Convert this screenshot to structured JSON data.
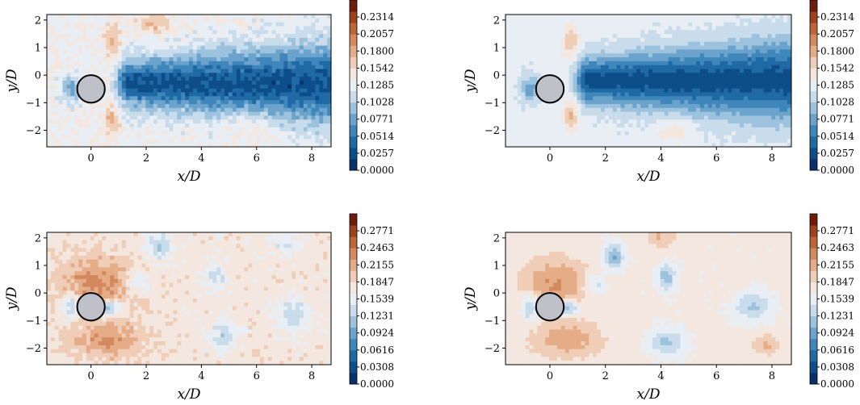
{
  "chart_data": [
    {
      "type": "contour",
      "panel": "top-left",
      "xlabel": "x/D",
      "ylabel": "y/D",
      "xticks": [
        "0",
        "2",
        "4",
        "6",
        "8"
      ],
      "yticks": [
        "2",
        "1",
        "0",
        "−1",
        "−2"
      ],
      "xlim": [
        -1.6,
        8.7
      ],
      "ylim": [
        -2.6,
        2.2
      ],
      "cylinder": {
        "x": 0,
        "y": -0.5,
        "r": 0.5
      },
      "colorbar_ticks": [
        "0.2314",
        "0.2057",
        "0.1800",
        "0.1542",
        "0.1285",
        "0.1028",
        "0.0771",
        "0.0514",
        "0.0257",
        "0.0000"
      ],
      "colorbar_range": [
        0.0,
        0.2571
      ],
      "field": {
        "ambient": 0.133,
        "lobes": [
          [
            0.75,
            1.3,
            0.28,
            0.6,
            0.048
          ],
          [
            0.75,
            -1.6,
            0.28,
            0.6,
            0.045
          ],
          [
            -0.7,
            -0.5,
            0.35,
            0.5,
            -0.05
          ],
          [
            2.2,
            1.9,
            0.7,
            0.45,
            0.035
          ],
          [
            5.8,
            -1.8,
            0.9,
            0.6,
            0.025
          ]
        ],
        "wake": {
          "start": 0.7,
          "center": -0.3,
          "width0": 0.9,
          "spread": 0.1,
          "depth": 0.105
        },
        "noise": 0.012
      }
    },
    {
      "type": "contour",
      "panel": "top-right",
      "xlabel": "x/D",
      "ylabel": "y/D",
      "xticks": [
        "0",
        "2",
        "4",
        "6",
        "8"
      ],
      "yticks": [
        "2",
        "1",
        "0",
        "−1",
        "−2"
      ],
      "xlim": [
        -1.6,
        8.7
      ],
      "ylim": [
        -2.6,
        2.2
      ],
      "cylinder": {
        "x": 0,
        "y": -0.5,
        "r": 0.5
      },
      "colorbar_ticks": [
        "0.2314",
        "0.2057",
        "0.1800",
        "0.1542",
        "0.1285",
        "0.1028",
        "0.0771",
        "0.0514",
        "0.0257",
        "0.0000"
      ],
      "colorbar_range": [
        0.0,
        0.2571
      ],
      "field": {
        "ambient": 0.126,
        "lobes": [
          [
            0.75,
            1.2,
            0.28,
            0.55,
            0.045
          ],
          [
            0.75,
            -1.5,
            0.28,
            0.55,
            0.045
          ],
          [
            -0.7,
            -0.5,
            0.35,
            0.5,
            -0.05
          ],
          [
            4.5,
            -2.0,
            0.7,
            0.5,
            0.025
          ]
        ],
        "wake": {
          "start": 0.7,
          "center": -0.2,
          "width0": 0.9,
          "spread": 0.1,
          "depth": 0.1
        },
        "noise": 0.005
      }
    },
    {
      "type": "contour",
      "panel": "bottom-left",
      "xlabel": "x/D",
      "ylabel": "y/D",
      "xticks": [
        "0",
        "2",
        "4",
        "6",
        "8"
      ],
      "yticks": [
        "2",
        "1",
        "0",
        "−1",
        "−2"
      ],
      "xlim": [
        -1.6,
        8.7
      ],
      "ylim": [
        -2.6,
        2.2
      ],
      "cylinder": {
        "x": 0,
        "y": -0.5,
        "r": 0.5
      },
      "colorbar_ticks": [
        "0.2771",
        "0.2463",
        "0.2155",
        "0.1847",
        "0.1539",
        "0.1231",
        "0.0924",
        "0.0616",
        "0.0308",
        "0.0000"
      ],
      "colorbar_range": [
        0.0,
        0.3079
      ],
      "field": {
        "ambient": 0.175,
        "lobes": [
          [
            0.2,
            0.3,
            1.3,
            1.0,
            0.06
          ],
          [
            0.6,
            -1.7,
            1.3,
            0.7,
            0.05
          ],
          [
            -0.7,
            -0.5,
            0.35,
            0.5,
            -0.06
          ],
          [
            0.5,
            -0.55,
            0.55,
            0.28,
            -0.09
          ],
          [
            2.5,
            1.7,
            0.45,
            0.45,
            -0.055
          ],
          [
            1.7,
            0.4,
            0.4,
            0.4,
            -0.045
          ],
          [
            4.5,
            0.6,
            0.4,
            0.5,
            -0.04
          ],
          [
            4.8,
            -1.5,
            0.5,
            0.5,
            -0.045
          ],
          [
            7.3,
            -0.8,
            0.6,
            0.6,
            -0.045
          ],
          [
            7.0,
            1.8,
            0.5,
            0.4,
            -0.03
          ]
        ],
        "wake": null,
        "noise": 0.012
      }
    },
    {
      "type": "contour",
      "panel": "bottom-right",
      "xlabel": "x/D",
      "ylabel": "y/D",
      "xticks": [
        "0",
        "2",
        "4",
        "6",
        "8"
      ],
      "yticks": [
        "2",
        "1",
        "0",
        "−1",
        "−2"
      ],
      "xlim": [
        -1.6,
        8.7
      ],
      "ylim": [
        -2.6,
        2.2
      ],
      "cylinder": {
        "x": 0,
        "y": -0.5,
        "r": 0.5
      },
      "colorbar_ticks": [
        "0.2771",
        "0.2463",
        "0.2155",
        "0.1847",
        "0.1539",
        "0.1231",
        "0.0924",
        "0.0616",
        "0.0308",
        "0.0000"
      ],
      "colorbar_range": [
        0.0,
        0.3079
      ],
      "field": {
        "ambient": 0.168,
        "lobes": [
          [
            0.2,
            0.3,
            1.3,
            1.0,
            0.06
          ],
          [
            0.6,
            -1.7,
            1.3,
            0.7,
            0.05
          ],
          [
            -0.7,
            -0.5,
            0.35,
            0.5,
            -0.06
          ],
          [
            0.5,
            -0.55,
            0.55,
            0.28,
            -0.09
          ],
          [
            2.3,
            1.3,
            0.35,
            0.45,
            -0.07
          ],
          [
            1.6,
            0.3,
            0.4,
            0.4,
            -0.045
          ],
          [
            4.2,
            0.6,
            0.3,
            0.45,
            -0.06
          ],
          [
            4.2,
            -1.8,
            0.6,
            0.45,
            -0.05
          ],
          [
            7.3,
            -0.5,
            0.6,
            0.5,
            -0.05
          ],
          [
            4.0,
            2.0,
            0.5,
            0.4,
            0.04
          ],
          [
            7.8,
            -1.9,
            0.5,
            0.4,
            0.04
          ]
        ],
        "wake": null,
        "noise": 0.004
      }
    }
  ]
}
